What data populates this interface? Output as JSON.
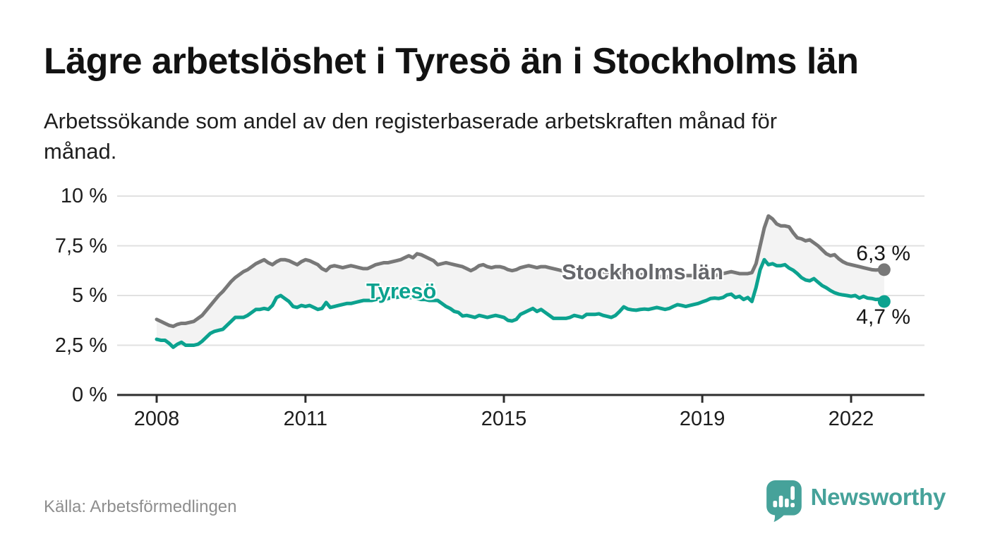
{
  "header": {
    "title": "Lägre arbetslöshet i Tyresö än i Stockholms län",
    "subtitle": "Arbetssökande som andel av den registerbaserade arbetskraften månad för\nmånad."
  },
  "footer": {
    "source": "Källa: Arbetsförmedlingen",
    "brand_name": "Newsworthy",
    "logo_icon": "bar-chart-speech-bubble"
  },
  "colors": {
    "tyreso_line": "#0ca28f",
    "stockholm_line": "#787878",
    "stockholm_label": "#66676b",
    "between_area_fill": "#f3f3f3",
    "gridline": "#e1e1e1",
    "axis": "#2d2d2d",
    "text_dark": "#161616",
    "text_muted": "#8e8e8e",
    "brand_teal": "#46a29a"
  },
  "chart_data": {
    "type": "line",
    "title": "Lägre arbetslöshet i Tyresö än i Stockholms län",
    "subtitle": "Arbetssökande som andel av den registerbaserade arbetskraften månad för månad.",
    "xlabel": "",
    "ylabel": "",
    "x_unit": "month",
    "x_start": "2008-01",
    "x_end": "2022-09",
    "points_per_year": 12,
    "x_tick_years": [
      2008,
      2011,
      2015,
      2019,
      2022
    ],
    "x_tick_labels": [
      "2008",
      "2011",
      "2015",
      "2019",
      "2022"
    ],
    "ylim": [
      0,
      10
    ],
    "y_ticks": [
      {
        "value": 0,
        "label": "0 %"
      },
      {
        "value": 2.5,
        "label": "2,5 %"
      },
      {
        "value": 5,
        "label": "5 %"
      },
      {
        "value": 7.5,
        "label": "7,5 %"
      },
      {
        "value": 10,
        "label": "10 %"
      }
    ],
    "grid": true,
    "legend_position": "inline-series-labels",
    "series": [
      {
        "name": "Stockholms län",
        "color": "#787878",
        "end_value": 6.3,
        "end_label": "6,3 %",
        "values": [
          3.8,
          3.7,
          3.6,
          3.5,
          3.45,
          3.55,
          3.6,
          3.6,
          3.65,
          3.7,
          3.85,
          4.0,
          4.25,
          4.5,
          4.75,
          5.0,
          5.2,
          5.45,
          5.7,
          5.9,
          6.05,
          6.2,
          6.3,
          6.45,
          6.6,
          6.7,
          6.8,
          6.65,
          6.55,
          6.7,
          6.8,
          6.8,
          6.75,
          6.65,
          6.55,
          6.7,
          6.8,
          6.75,
          6.65,
          6.55,
          6.35,
          6.25,
          6.45,
          6.5,
          6.45,
          6.4,
          6.45,
          6.5,
          6.45,
          6.4,
          6.35,
          6.35,
          6.45,
          6.55,
          6.6,
          6.65,
          6.65,
          6.7,
          6.75,
          6.8,
          6.9,
          7.0,
          6.9,
          7.1,
          7.05,
          6.95,
          6.85,
          6.75,
          6.55,
          6.6,
          6.65,
          6.6,
          6.55,
          6.5,
          6.45,
          6.35,
          6.25,
          6.35,
          6.5,
          6.55,
          6.45,
          6.4,
          6.45,
          6.45,
          6.4,
          6.3,
          6.25,
          6.3,
          6.4,
          6.45,
          6.5,
          6.45,
          6.4,
          6.45,
          6.45,
          6.4,
          6.35,
          6.3,
          6.25,
          6.25,
          6.3,
          6.35,
          6.35,
          6.3,
          6.25,
          6.2,
          6.2,
          6.2,
          6.2,
          6.15,
          6.1,
          6.1,
          6.1,
          6.15,
          6.2,
          6.15,
          6.1,
          6.05,
          6.05,
          6.05,
          6.05,
          6.0,
          5.95,
          5.95,
          5.95,
          6.0,
          6.05,
          6.05,
          6.0,
          6.0,
          6.0,
          6.0,
          6.0,
          5.95,
          5.95,
          6.0,
          6.05,
          6.1,
          6.15,
          6.2,
          6.15,
          6.1,
          6.1,
          6.1,
          6.15,
          6.6,
          7.5,
          8.4,
          9.0,
          8.85,
          8.6,
          8.5,
          8.5,
          8.45,
          8.15,
          7.9,
          7.85,
          7.75,
          7.8,
          7.65,
          7.5,
          7.3,
          7.1,
          7.0,
          7.05,
          6.85,
          6.7,
          6.6,
          6.55,
          6.5,
          6.45,
          6.4,
          6.35,
          6.3,
          6.28,
          6.3,
          6.3
        ]
      },
      {
        "name": "Tyresö",
        "color": "#0ca28f",
        "end_value": 4.7,
        "end_label": "4,7 %",
        "values": [
          2.8,
          2.75,
          2.75,
          2.6,
          2.4,
          2.55,
          2.65,
          2.5,
          2.5,
          2.5,
          2.55,
          2.7,
          2.9,
          3.1,
          3.2,
          3.25,
          3.3,
          3.5,
          3.7,
          3.9,
          3.9,
          3.9,
          4.0,
          4.15,
          4.3,
          4.3,
          4.35,
          4.3,
          4.5,
          4.9,
          5.0,
          4.85,
          4.7,
          4.45,
          4.4,
          4.5,
          4.45,
          4.5,
          4.4,
          4.3,
          4.35,
          4.65,
          4.4,
          4.45,
          4.5,
          4.55,
          4.6,
          4.6,
          4.65,
          4.7,
          4.75,
          4.75,
          4.75,
          4.8,
          4.85,
          4.8,
          4.85,
          4.9,
          4.9,
          4.95,
          4.95,
          4.9,
          4.9,
          4.85,
          4.8,
          4.8,
          4.75,
          4.75,
          4.75,
          4.6,
          4.45,
          4.35,
          4.2,
          4.15,
          3.97,
          4.0,
          3.95,
          3.9,
          4.0,
          3.95,
          3.9,
          3.95,
          4.0,
          3.95,
          3.9,
          3.75,
          3.72,
          3.8,
          4.05,
          4.15,
          4.25,
          4.35,
          4.2,
          4.3,
          4.15,
          4.0,
          3.85,
          3.85,
          3.85,
          3.85,
          3.9,
          4.0,
          3.95,
          3.9,
          4.05,
          4.05,
          4.05,
          4.08,
          4.0,
          3.95,
          3.9,
          4.0,
          4.2,
          4.43,
          4.32,
          4.28,
          4.26,
          4.3,
          4.32,
          4.3,
          4.35,
          4.4,
          4.35,
          4.3,
          4.35,
          4.45,
          4.54,
          4.5,
          4.45,
          4.5,
          4.55,
          4.6,
          4.68,
          4.75,
          4.85,
          4.87,
          4.85,
          4.9,
          5.03,
          5.07,
          4.9,
          4.96,
          4.8,
          4.9,
          4.7,
          5.4,
          6.3,
          6.8,
          6.55,
          6.6,
          6.5,
          6.5,
          6.55,
          6.38,
          6.27,
          6.1,
          5.9,
          5.78,
          5.74,
          5.85,
          5.67,
          5.5,
          5.39,
          5.25,
          5.14,
          5.07,
          5.03,
          5.0,
          4.96,
          5.0,
          4.87,
          4.96,
          4.87,
          4.85,
          4.8,
          4.82,
          4.7
        ]
      }
    ]
  }
}
